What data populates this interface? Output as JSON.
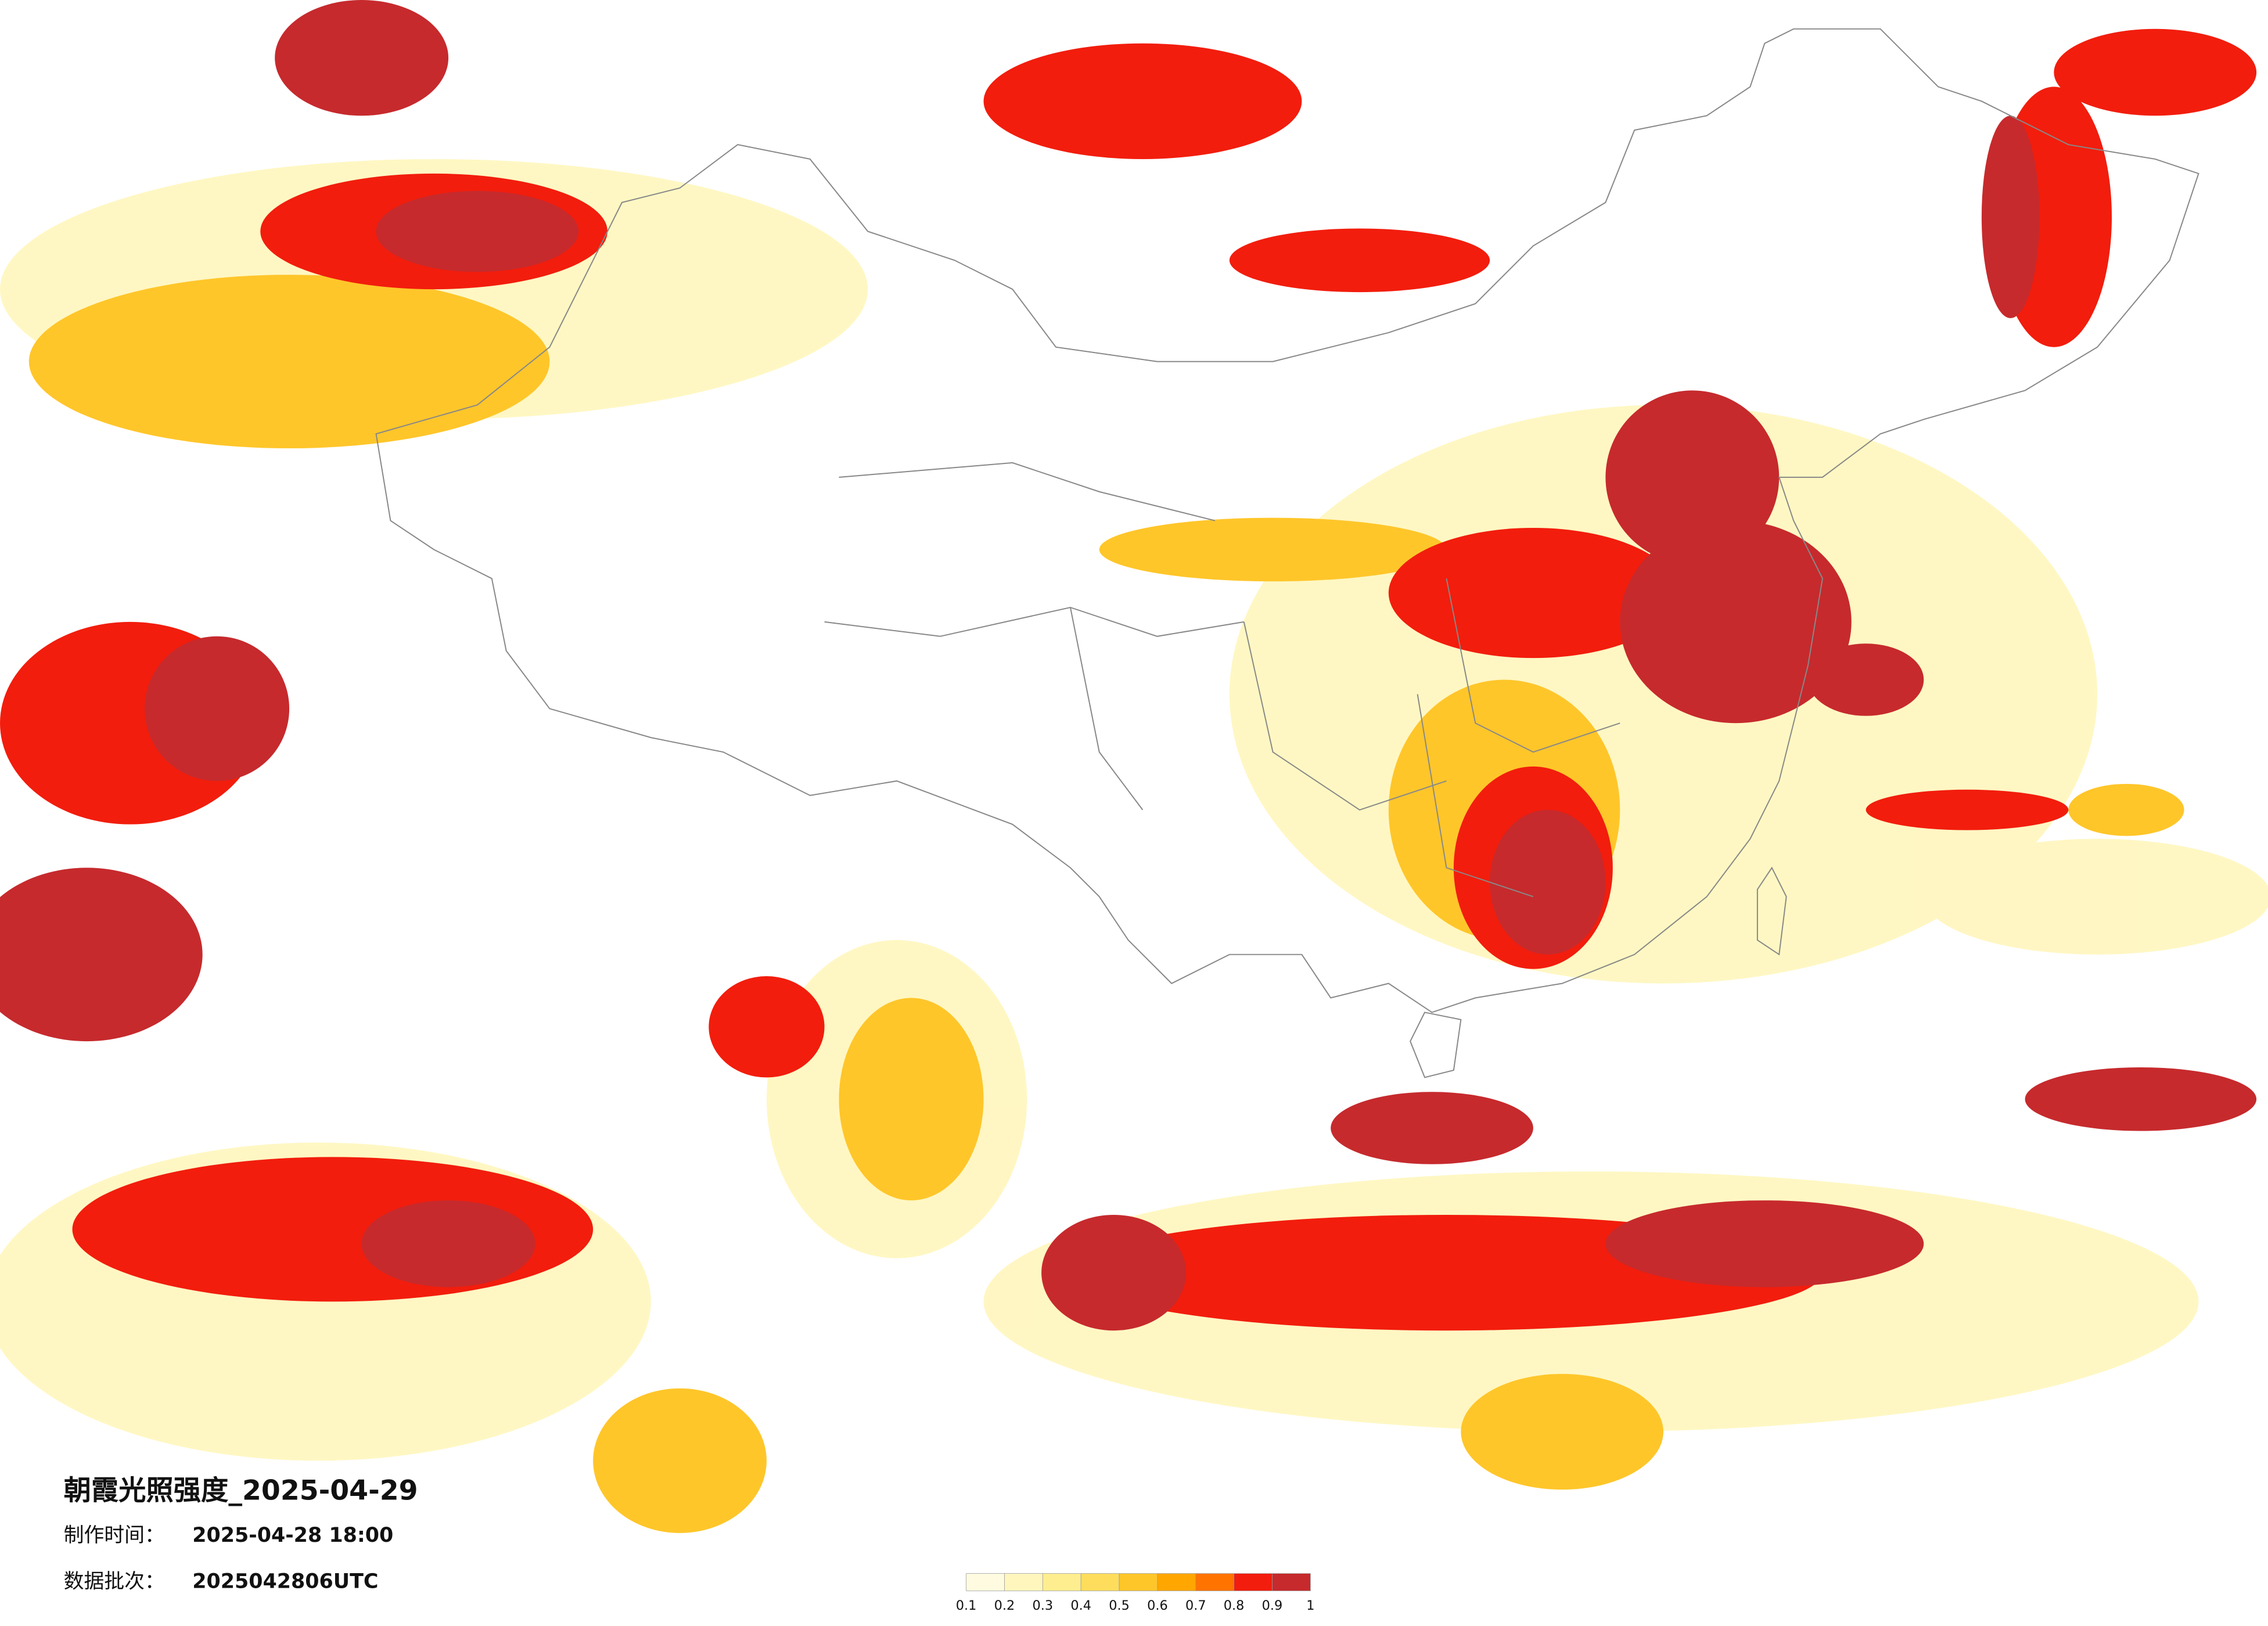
{
  "title": "朝霞光照强度_2025-04-29",
  "make_time": {
    "label": "制作时间：",
    "value": "2025-04-28 18:00"
  },
  "batch": {
    "label": "数据批次：",
    "value": "2025042806UTC"
  },
  "legend": {
    "colors": [
      "#fffbe0",
      "#fff6bd",
      "#ffee8f",
      "#ffdd5c",
      "#ffc62a",
      "#ffa600",
      "#ff7300",
      "#f21d0d",
      "#c62a2d"
    ],
    "ticks": [
      0.1,
      0.2,
      0.3,
      0.4,
      0.5,
      0.6,
      0.7,
      0.8,
      0.9,
      1
    ]
  }
}
